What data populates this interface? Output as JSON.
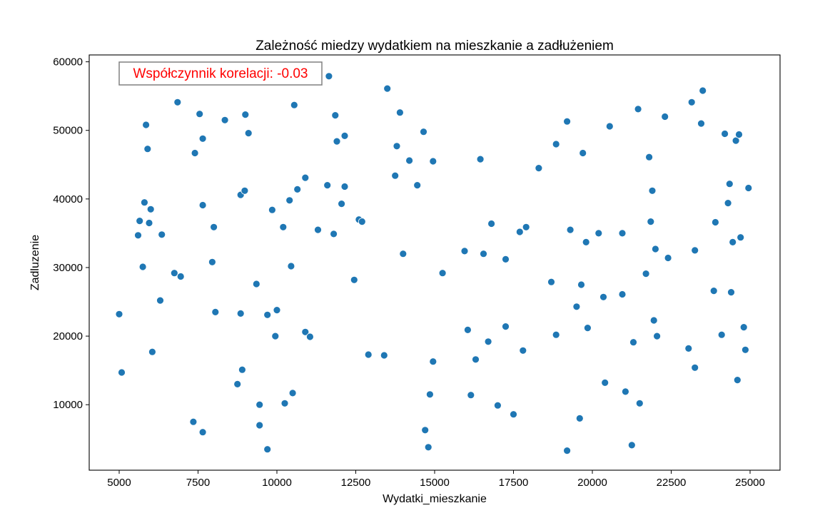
{
  "chart_data": {
    "type": "scatter",
    "title": "Zależność miedzy wydatkiem na mieszkanie a zadłużeniem",
    "xlabel": "Wydatki_mieszkanie",
    "ylabel": "Zadluzenie",
    "xlim": [
      4050,
      25950
    ],
    "ylim": [
      450,
      61000
    ],
    "xticks": [
      5000,
      7500,
      10000,
      12500,
      15000,
      17500,
      20000,
      22500,
      25000
    ],
    "yticks": [
      10000,
      20000,
      30000,
      40000,
      50000,
      60000
    ],
    "grid": false,
    "annotation": {
      "text": "Współczynnik korelacji: -0.03",
      "color": "#ff0000",
      "location": "top-left"
    },
    "marker_color": "#1f77b4",
    "points": [
      [
        5000,
        23200
      ],
      [
        5080,
        14700
      ],
      [
        5600,
        34700
      ],
      [
        5650,
        36800
      ],
      [
        5750,
        30100
      ],
      [
        5800,
        39500
      ],
      [
        5850,
        50800
      ],
      [
        5900,
        47300
      ],
      [
        5950,
        36500
      ],
      [
        6000,
        38500
      ],
      [
        6050,
        17700
      ],
      [
        6350,
        34800
      ],
      [
        6300,
        25200
      ],
      [
        6750,
        29200
      ],
      [
        6950,
        28700
      ],
      [
        6850,
        54100
      ],
      [
        7350,
        7500
      ],
      [
        7400,
        46700
      ],
      [
        7550,
        52400
      ],
      [
        7650,
        48800
      ],
      [
        7650,
        39100
      ],
      [
        7650,
        6000
      ],
      [
        7950,
        30800
      ],
      [
        8000,
        35900
      ],
      [
        8050,
        23500
      ],
      [
        8350,
        51500
      ],
      [
        8750,
        13000
      ],
      [
        8850,
        23300
      ],
      [
        8850,
        40600
      ],
      [
        8900,
        15100
      ],
      [
        8980,
        41200
      ],
      [
        9000,
        52300
      ],
      [
        9100,
        49600
      ],
      [
        9350,
        27600
      ],
      [
        9450,
        10000
      ],
      [
        9450,
        7000
      ],
      [
        9700,
        3500
      ],
      [
        9700,
        23100
      ],
      [
        9850,
        38400
      ],
      [
        9950,
        20000
      ],
      [
        10000,
        23800
      ],
      [
        10200,
        35900
      ],
      [
        10250,
        10200
      ],
      [
        10400,
        39800
      ],
      [
        10450,
        30200
      ],
      [
        10500,
        11700
      ],
      [
        10550,
        53700
      ],
      [
        10650,
        41400
      ],
      [
        10900,
        43100
      ],
      [
        10900,
        20600
      ],
      [
        11050,
        19900
      ],
      [
        11300,
        35500
      ],
      [
        11600,
        42000
      ],
      [
        11650,
        57900
      ],
      [
        11800,
        34900
      ],
      [
        11850,
        52200
      ],
      [
        11900,
        48400
      ],
      [
        12050,
        39300
      ],
      [
        12150,
        49200
      ],
      [
        12150,
        41800
      ],
      [
        12450,
        28200
      ],
      [
        12600,
        37000
      ],
      [
        12700,
        36700
      ],
      [
        12900,
        17300
      ],
      [
        13400,
        17200
      ],
      [
        13500,
        56100
      ],
      [
        13750,
        43400
      ],
      [
        13800,
        47700
      ],
      [
        13900,
        52600
      ],
      [
        14000,
        32000
      ],
      [
        14200,
        45600
      ],
      [
        14450,
        42000
      ],
      [
        14650,
        49800
      ],
      [
        14700,
        6300
      ],
      [
        14800,
        3800
      ],
      [
        14850,
        11500
      ],
      [
        14950,
        16300
      ],
      [
        14950,
        45500
      ],
      [
        15250,
        29200
      ],
      [
        15950,
        32400
      ],
      [
        16050,
        20900
      ],
      [
        16150,
        11400
      ],
      [
        16300,
        16600
      ],
      [
        16450,
        45800
      ],
      [
        16550,
        32000
      ],
      [
        16700,
        19200
      ],
      [
        16800,
        36400
      ],
      [
        17000,
        9900
      ],
      [
        17250,
        21400
      ],
      [
        17250,
        31200
      ],
      [
        17500,
        8600
      ],
      [
        17700,
        35200
      ],
      [
        17800,
        17900
      ],
      [
        17900,
        35900
      ],
      [
        18300,
        44500
      ],
      [
        18700,
        27900
      ],
      [
        18850,
        48000
      ],
      [
        18850,
        20200
      ],
      [
        19200,
        51300
      ],
      [
        19200,
        3300
      ],
      [
        19300,
        35500
      ],
      [
        19500,
        24300
      ],
      [
        19600,
        8000
      ],
      [
        19650,
        27500
      ],
      [
        19700,
        46700
      ],
      [
        19800,
        33700
      ],
      [
        19850,
        21200
      ],
      [
        20200,
        35000
      ],
      [
        20350,
        25700
      ],
      [
        20400,
        13200
      ],
      [
        20550,
        50600
      ],
      [
        20950,
        35000
      ],
      [
        20950,
        26100
      ],
      [
        21050,
        11900
      ],
      [
        21250,
        4100
      ],
      [
        21300,
        19100
      ],
      [
        21450,
        53100
      ],
      [
        21500,
        10200
      ],
      [
        21700,
        29100
      ],
      [
        21800,
        46100
      ],
      [
        21850,
        36700
      ],
      [
        21900,
        41200
      ],
      [
        21950,
        22300
      ],
      [
        22000,
        32700
      ],
      [
        22050,
        20000
      ],
      [
        22300,
        52000
      ],
      [
        22400,
        31400
      ],
      [
        23050,
        18200
      ],
      [
        23150,
        54100
      ],
      [
        23250,
        32500
      ],
      [
        23250,
        15400
      ],
      [
        23450,
        51000
      ],
      [
        23500,
        55800
      ],
      [
        23850,
        26600
      ],
      [
        23900,
        36600
      ],
      [
        24100,
        20200
      ],
      [
        24200,
        49500
      ],
      [
        24300,
        39400
      ],
      [
        24350,
        42200
      ],
      [
        24400,
        26400
      ],
      [
        24450,
        33700
      ],
      [
        24550,
        48500
      ],
      [
        24600,
        13600
      ],
      [
        24650,
        49400
      ],
      [
        24700,
        34400
      ],
      [
        24800,
        21300
      ],
      [
        24850,
        18000
      ],
      [
        24950,
        41600
      ]
    ]
  }
}
